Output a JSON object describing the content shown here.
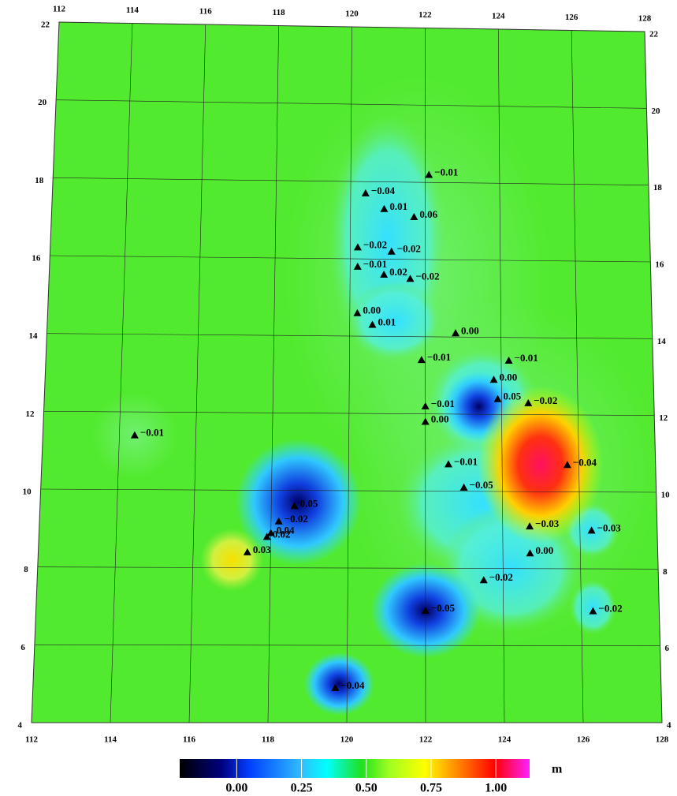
{
  "map": {
    "lon_ticks": [
      112,
      114,
      116,
      118,
      120,
      122,
      124,
      126,
      128
    ],
    "lat_ticks": [
      4,
      6,
      8,
      10,
      12,
      14,
      16,
      18,
      20,
      22
    ],
    "lonlim": [
      112,
      128
    ],
    "latlim": [
      4,
      22
    ],
    "stations": [
      {
        "lon": 114.4,
        "lat": 11.4,
        "label": "−0.01"
      },
      {
        "lon": 120.4,
        "lat": 17.7,
        "label": "−0.04"
      },
      {
        "lon": 122.1,
        "lat": 18.2,
        "label": "−0.01"
      },
      {
        "lon": 120.9,
        "lat": 17.3,
        "label": "0.01"
      },
      {
        "lon": 121.7,
        "lat": 17.1,
        "label": "0.06"
      },
      {
        "lon": 120.2,
        "lat": 16.3,
        "label": "−0.02"
      },
      {
        "lon": 121.1,
        "lat": 16.2,
        "label": "−0.02"
      },
      {
        "lon": 120.2,
        "lat": 15.8,
        "label": "−0.01"
      },
      {
        "lon": 120.9,
        "lat": 15.6,
        "label": "0.02"
      },
      {
        "lon": 121.6,
        "lat": 15.5,
        "label": "−0.02"
      },
      {
        "lon": 120.2,
        "lat": 14.6,
        "label": "0.00"
      },
      {
        "lon": 120.6,
        "lat": 14.3,
        "label": "0.01"
      },
      {
        "lon": 122.8,
        "lat": 14.1,
        "label": "0.00"
      },
      {
        "lon": 121.9,
        "lat": 13.4,
        "label": "−0.01"
      },
      {
        "lon": 124.2,
        "lat": 13.4,
        "label": "−0.01"
      },
      {
        "lon": 123.8,
        "lat": 12.9,
        "label": "0.00"
      },
      {
        "lon": 123.9,
        "lat": 12.4,
        "label": "0.05"
      },
      {
        "lon": 124.7,
        "lat": 12.3,
        "label": "−0.02"
      },
      {
        "lon": 122.0,
        "lat": 12.2,
        "label": "−0.01"
      },
      {
        "lon": 122.0,
        "lat": 11.8,
        "label": "0.00"
      },
      {
        "lon": 122.6,
        "lat": 10.7,
        "label": "−0.01"
      },
      {
        "lon": 125.7,
        "lat": 10.7,
        "label": "−0.04"
      },
      {
        "lon": 123.0,
        "lat": 10.1,
        "label": "−0.05"
      },
      {
        "lon": 124.7,
        "lat": 9.1,
        "label": "−0.03"
      },
      {
        "lon": 126.3,
        "lat": 9.0,
        "label": "−0.03"
      },
      {
        "lon": 124.7,
        "lat": 8.4,
        "label": "0.00"
      },
      {
        "lon": 123.5,
        "lat": 7.7,
        "label": "−0.02"
      },
      {
        "lon": 126.3,
        "lat": 6.9,
        "label": "−0.02"
      },
      {
        "lon": 122.0,
        "lat": 6.9,
        "label": "−0.05"
      },
      {
        "lon": 119.7,
        "lat": 4.9,
        "label": "−0.04"
      },
      {
        "lon": 118.6,
        "lat": 9.6,
        "label": "0.05"
      },
      {
        "lon": 118.2,
        "lat": 9.2,
        "label": "−0.02"
      },
      {
        "lon": 117.9,
        "lat": 8.8,
        "label": "0.02"
      },
      {
        "lon": 118.0,
        "lat": 8.9,
        "label": "0.04"
      },
      {
        "lon": 117.4,
        "lat": 8.4,
        "label": "0.03"
      }
    ],
    "colorbar": {
      "clim": [
        -0.22,
        1.13
      ],
      "ticks": [
        {
          "value": 0,
          "label": "0.00"
        },
        {
          "value": 0.25,
          "label": "0.25"
        },
        {
          "value": 0.5,
          "label": "0.50"
        },
        {
          "value": 0.75,
          "label": "0.75"
        },
        {
          "value": 1,
          "label": "1.00"
        }
      ],
      "unit": "m"
    }
  }
}
